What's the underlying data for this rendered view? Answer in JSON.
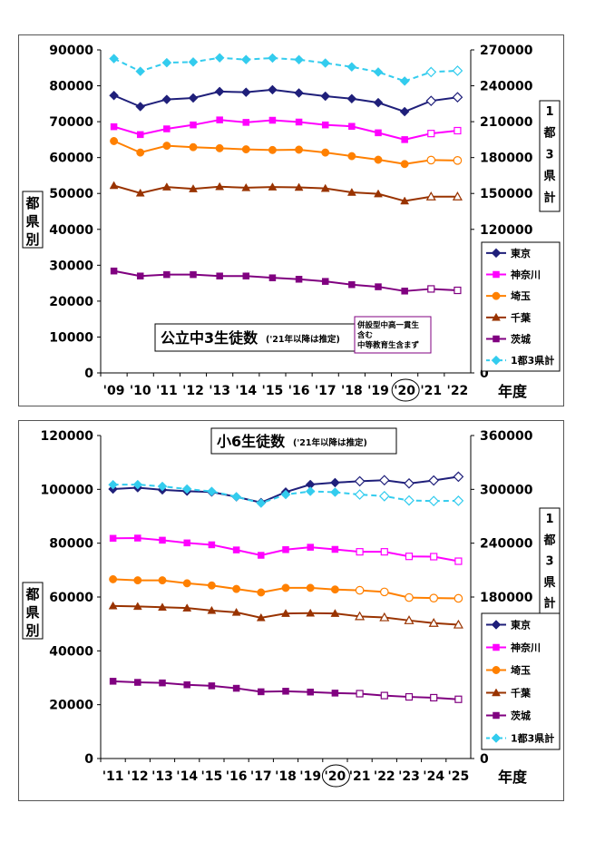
{
  "chart_data": [
    {
      "type": "line",
      "title": "公立中3生徒数",
      "subtitle": "('21年以降は推定)",
      "note_lines": [
        "併設型中高一貫生",
        "含む",
        "中等教育生含まず"
      ],
      "ylabel": "都県別",
      "y2label": "1都3県計",
      "xlabel": "年度",
      "categories": [
        "'09",
        "'10",
        "'11",
        "'12",
        "'13",
        "'14",
        "'15",
        "'16",
        "'17",
        "'18",
        "'19",
        "'20",
        "'21",
        "'22"
      ],
      "circled_category": "'20",
      "estimated_from_index": 12,
      "ylim": [
        0,
        90000
      ],
      "y2lim": [
        0,
        270000
      ],
      "yticks": [
        "0",
        "10000",
        "20000",
        "30000",
        "40000",
        "50000",
        "60000",
        "70000",
        "80000",
        "90000"
      ],
      "y2ticks": [
        "0",
        "120000",
        "150000",
        "180000",
        "210000",
        "240000",
        "270000"
      ],
      "series": [
        {
          "name": "東京",
          "color": "#1f1f7a",
          "marker": "diamond",
          "axis": "left",
          "values": [
            77300,
            74200,
            76200,
            76600,
            78400,
            78200,
            78900,
            78000,
            77100,
            76400,
            75300,
            72800,
            75800,
            76800
          ]
        },
        {
          "name": "神奈川",
          "color": "#ff00ff",
          "marker": "square",
          "axis": "left",
          "values": [
            68600,
            66400,
            68000,
            69100,
            70500,
            69800,
            70400,
            69900,
            69100,
            68700,
            66900,
            65000,
            66700,
            67500
          ]
        },
        {
          "name": "埼玉",
          "color": "#ff8000",
          "marker": "circle",
          "axis": "left",
          "values": [
            64600,
            61400,
            63300,
            62900,
            62600,
            62300,
            62100,
            62200,
            61400,
            60400,
            59400,
            58200,
            59300,
            59200
          ]
        },
        {
          "name": "千葉",
          "color": "#993300",
          "marker": "triangle",
          "axis": "left",
          "values": [
            52200,
            50100,
            51800,
            51300,
            51900,
            51600,
            51800,
            51700,
            51400,
            50300,
            49900,
            47900,
            49100,
            49100
          ]
        },
        {
          "name": "茨城",
          "color": "#800080",
          "marker": "square",
          "axis": "left",
          "values": [
            28400,
            27000,
            27400,
            27400,
            27000,
            27000,
            26500,
            26100,
            25500,
            24600,
            24000,
            22800,
            23400,
            23000
          ]
        },
        {
          "name": "1都3県計",
          "color": "#33ccee",
          "marker": "diamond",
          "axis": "right",
          "dashed": true,
          "values": [
            262700,
            252100,
            259300,
            259900,
            263400,
            261900,
            263200,
            261800,
            259000,
            255800,
            251500,
            243900,
            251500,
            252600
          ]
        }
      ]
    },
    {
      "type": "line",
      "title": "小6生徒数",
      "subtitle": "('21年以降は推定)",
      "ylabel": "都県別",
      "y2label": "1都3県計",
      "xlabel": "年度",
      "categories": [
        "'11",
        "'12",
        "'13",
        "'14",
        "'15",
        "'16",
        "'17",
        "'18",
        "'19",
        "'20",
        "'21",
        "'22",
        "'23",
        "'24",
        "'25"
      ],
      "circled_category": "'20",
      "estimated_from_index": 10,
      "ylim": [
        0,
        120000
      ],
      "y2lim": [
        0,
        360000
      ],
      "yticks": [
        "0",
        "20000",
        "40000",
        "60000",
        "80000",
        "100000",
        "120000"
      ],
      "y2ticks": [
        "0",
        "180000",
        "240000",
        "300000",
        "360000"
      ],
      "series": [
        {
          "name": "東京",
          "color": "#1f1f7a",
          "marker": "diamond",
          "axis": "left",
          "values": [
            100100,
            100600,
            99800,
            99300,
            99000,
            97200,
            95100,
            99000,
            101800,
            102500,
            103000,
            103400,
            102200,
            103300,
            104700
          ]
        },
        {
          "name": "神奈川",
          "color": "#ff00ff",
          "marker": "square",
          "axis": "left",
          "values": [
            81800,
            81900,
            81100,
            80100,
            79400,
            77500,
            75500,
            77600,
            78500,
            77700,
            76800,
            76800,
            75100,
            75000,
            73300
          ]
        },
        {
          "name": "埼玉",
          "color": "#ff8000",
          "marker": "circle",
          "axis": "left",
          "values": [
            66600,
            66200,
            66200,
            65100,
            64300,
            63000,
            61700,
            63400,
            63400,
            62800,
            62500,
            61900,
            59800,
            59600,
            59500
          ]
        },
        {
          "name": "千葉",
          "color": "#993300",
          "marker": "triangle",
          "axis": "left",
          "values": [
            56700,
            56500,
            56200,
            55900,
            55000,
            54300,
            52300,
            53900,
            54000,
            53900,
            52800,
            52400,
            51300,
            50300,
            49700
          ]
        },
        {
          "name": "茨城",
          "color": "#800080",
          "marker": "square",
          "axis": "left",
          "values": [
            28700,
            28300,
            28100,
            27400,
            27000,
            26100,
            24800,
            25000,
            24700,
            24300,
            24100,
            23400,
            22900,
            22600,
            22000
          ]
        },
        {
          "name": "1都3県計",
          "color": "#33ccee",
          "marker": "diamond",
          "axis": "right",
          "dashed": true,
          "values": [
            305200,
            305300,
            303300,
            300400,
            297700,
            291800,
            284600,
            294200,
            297800,
            296800,
            294200,
            292400,
            287600,
            287000,
            287300
          ]
        }
      ]
    }
  ]
}
